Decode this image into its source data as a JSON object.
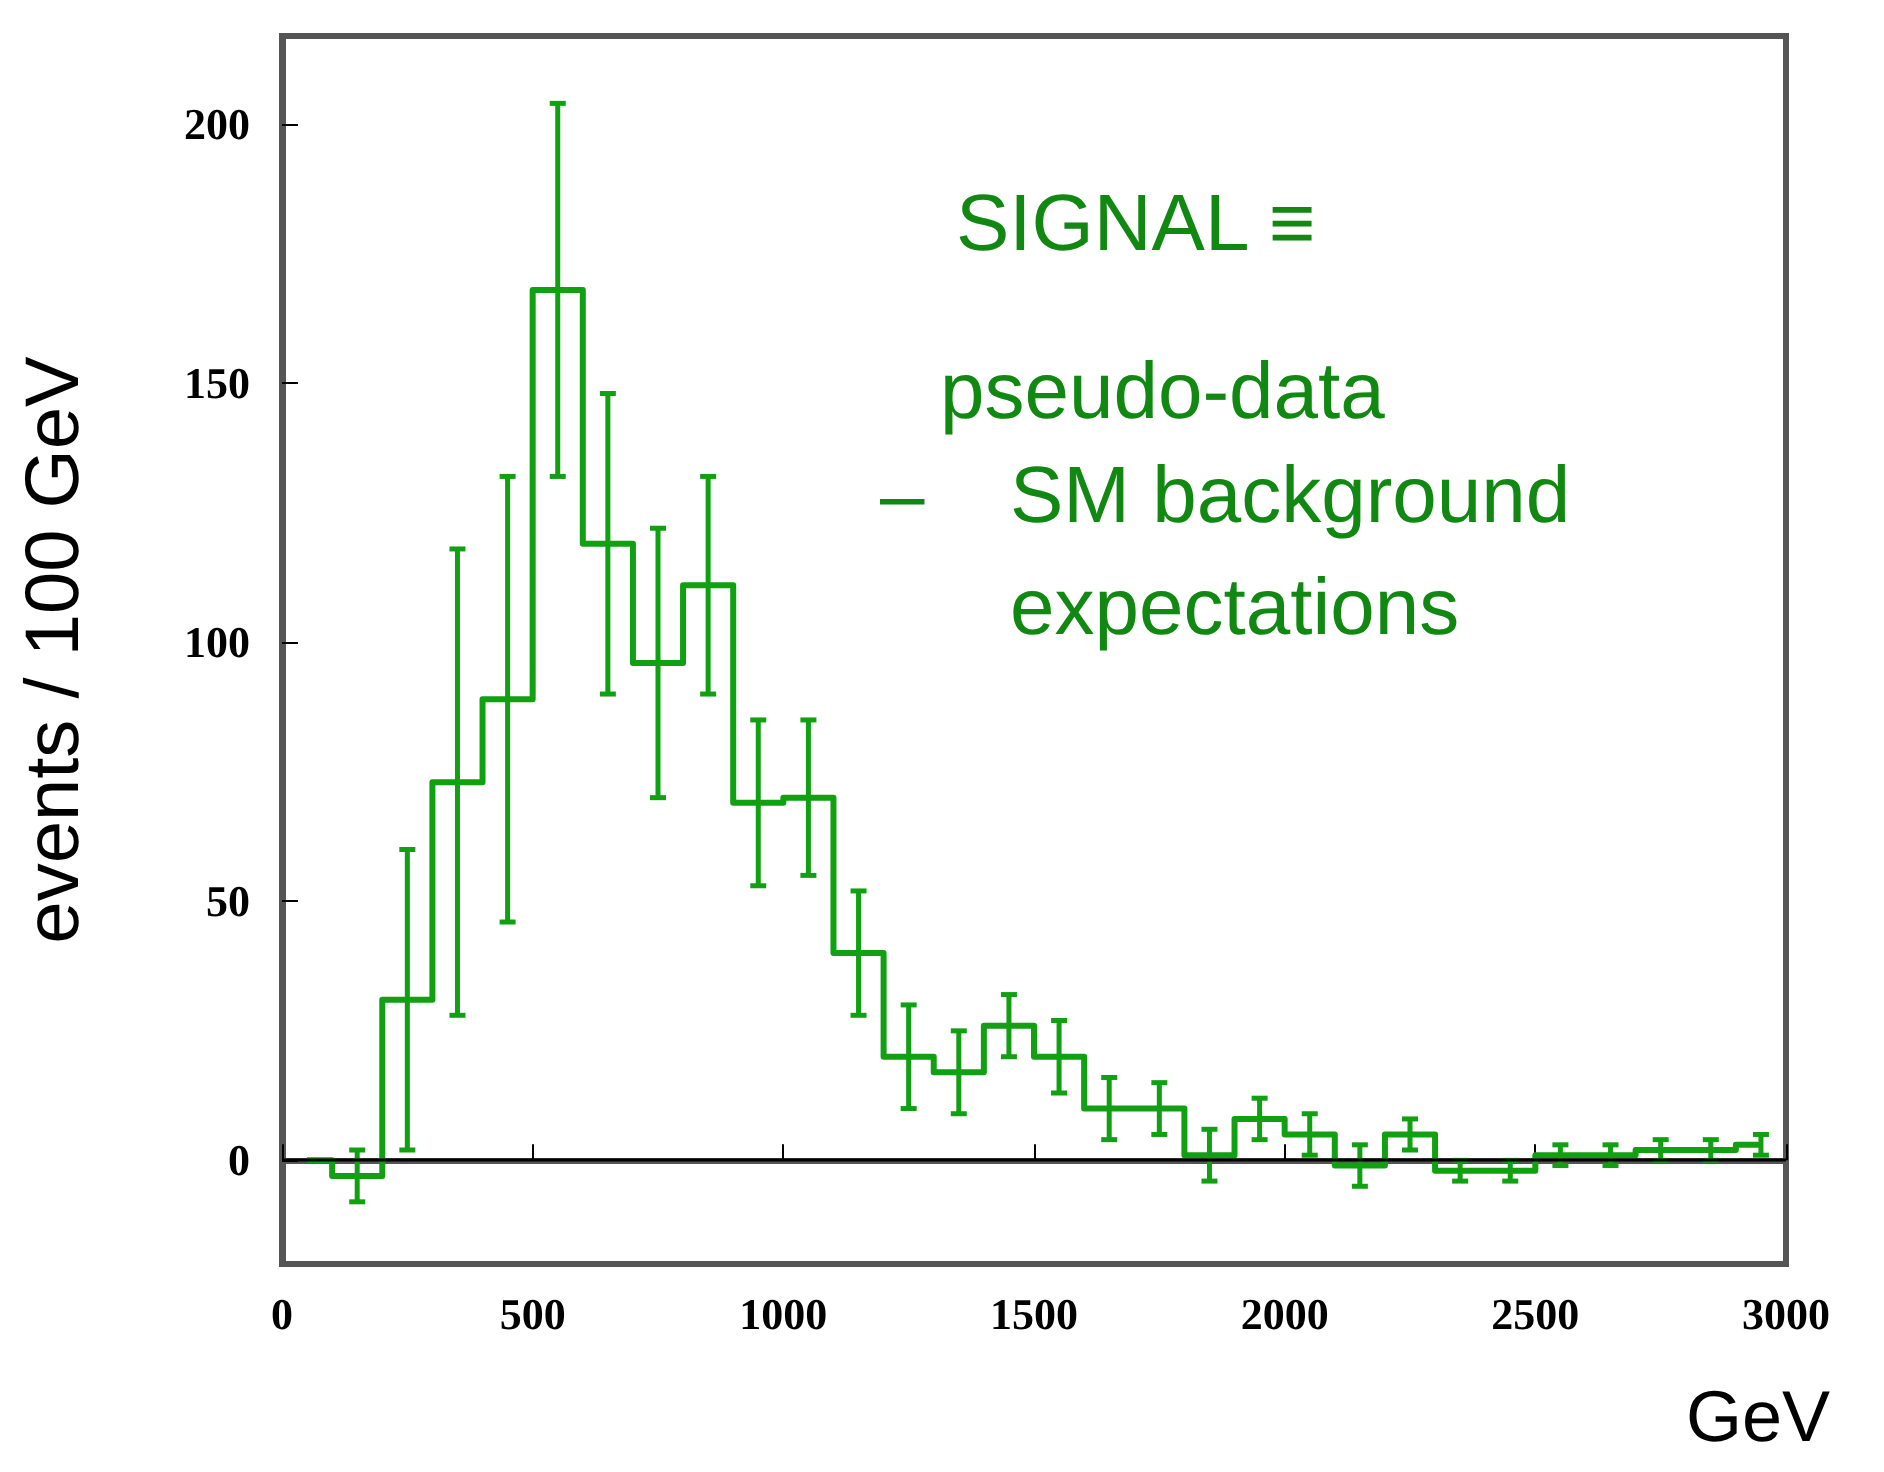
{
  "chart_data": {
    "type": "step",
    "ylabel": "events / 100 GeV",
    "xlabel": "GeV",
    "annotations": [
      "SIGNAL ≡",
      "pseudo-data",
      "–",
      "SM background expectations"
    ],
    "x": [
      50,
      150,
      250,
      350,
      450,
      550,
      650,
      750,
      850,
      950,
      1050,
      1150,
      1250,
      1350,
      1450,
      1550,
      1650,
      1750,
      1850,
      1950,
      2050,
      2150,
      2250,
      2350,
      2450,
      2550,
      2650,
      2750,
      2850,
      2950
    ],
    "values": [
      0,
      -3,
      31,
      73,
      89,
      168,
      119,
      96,
      111,
      69,
      70,
      40,
      20,
      17,
      26,
      20,
      10,
      10,
      1,
      8,
      5,
      -1,
      5,
      -2,
      -2,
      1,
      1,
      2,
      2,
      3
    ],
    "errors": [
      null,
      5,
      29,
      45,
      43,
      36,
      29,
      26,
      21,
      16,
      15,
      12,
      10,
      8,
      6,
      7,
      6,
      5,
      5,
      4,
      4,
      4,
      3,
      2,
      2,
      2,
      2,
      2,
      2,
      2
    ],
    "color": "#11a011",
    "xlim": [
      0,
      3000
    ],
    "xticks": [
      0,
      500,
      1000,
      1500,
      2000,
      2500,
      3000
    ],
    "ylim": [
      -20,
      217
    ],
    "yticks": [
      0,
      50,
      100,
      150,
      200
    ],
    "ref_lines": [
      {
        "axis": "y",
        "value": 0,
        "color": "#000000"
      }
    ],
    "grid": false,
    "marker": "none"
  }
}
